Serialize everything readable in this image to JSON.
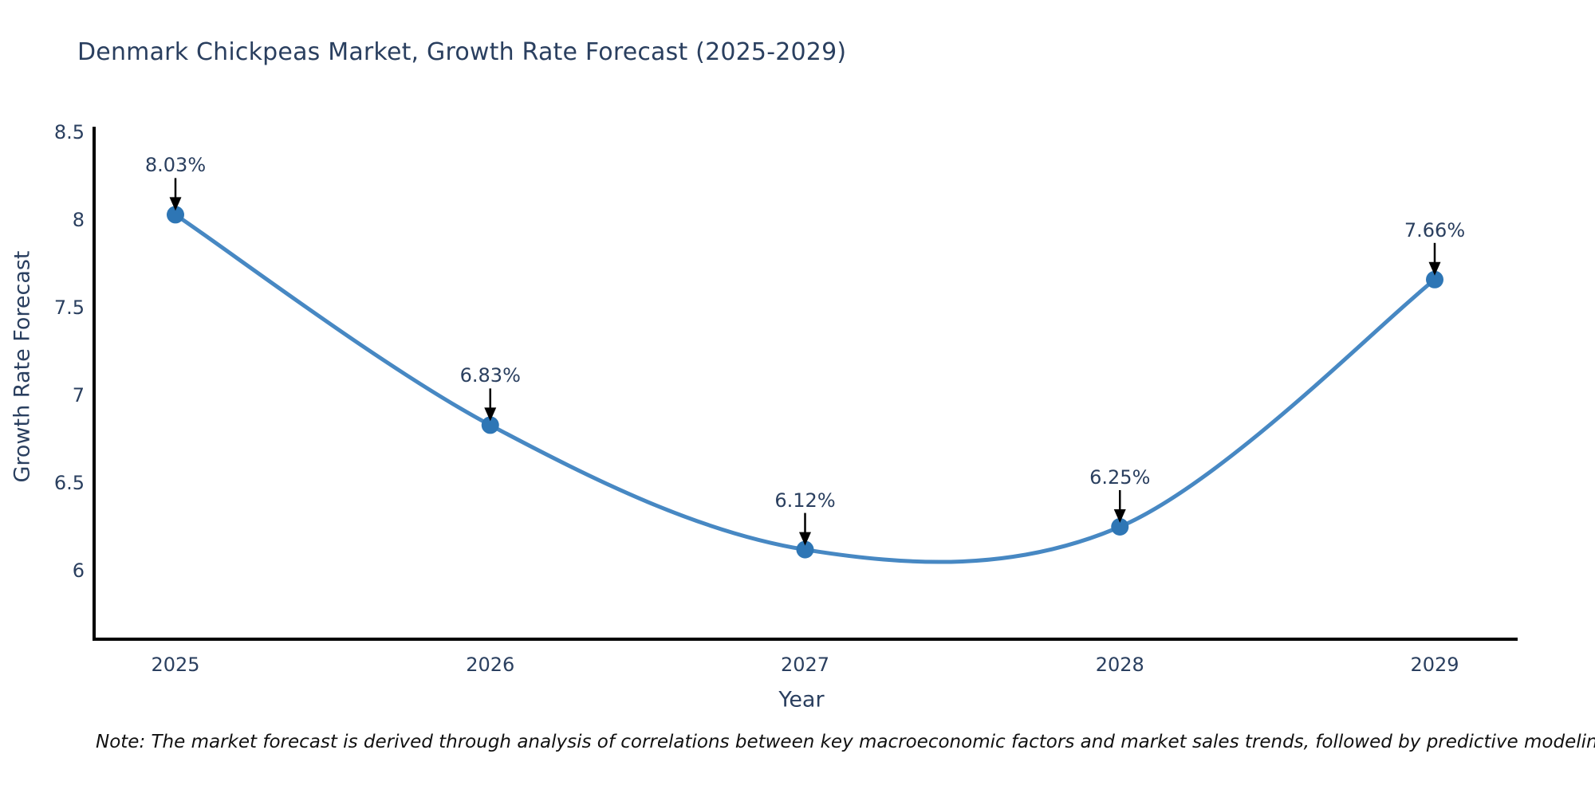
{
  "title": "Denmark Chickpeas Market, Growth Rate Forecast (2025-2029)",
  "note": "Note: The market forecast is derived through analysis of correlations between key macroeconomic factors and market sales trends, followed by predictive modeling to project future sales",
  "chart_data": {
    "type": "line",
    "line_shape": "spline",
    "title": "Denmark Chickpeas Market, Growth Rate Forecast (2025-2029)",
    "xlabel": "Year",
    "ylabel": "Growth Rate Forecast",
    "categories": [
      "2025",
      "2026",
      "2027",
      "2028",
      "2029"
    ],
    "x": [
      2025,
      2026,
      2027,
      2028,
      2029
    ],
    "values": [
      8.03,
      6.83,
      6.12,
      6.25,
      7.66
    ],
    "point_labels": [
      "8.03%",
      "6.83%",
      "6.12%",
      "6.25%",
      "7.66%"
    ],
    "yticks": [
      6,
      6.5,
      7,
      7.5,
      8,
      8.5
    ],
    "ylim": [
      5.61,
      8.53
    ],
    "grid": false,
    "legend": false,
    "annotations_have_arrows": true,
    "colors": {
      "line": "#4788c3",
      "marker": "#2e76b5",
      "arrow": "#000000",
      "axis": "#000000",
      "text": "#2a3f5f",
      "note_text": "#111111",
      "background": "#ffffff"
    }
  }
}
